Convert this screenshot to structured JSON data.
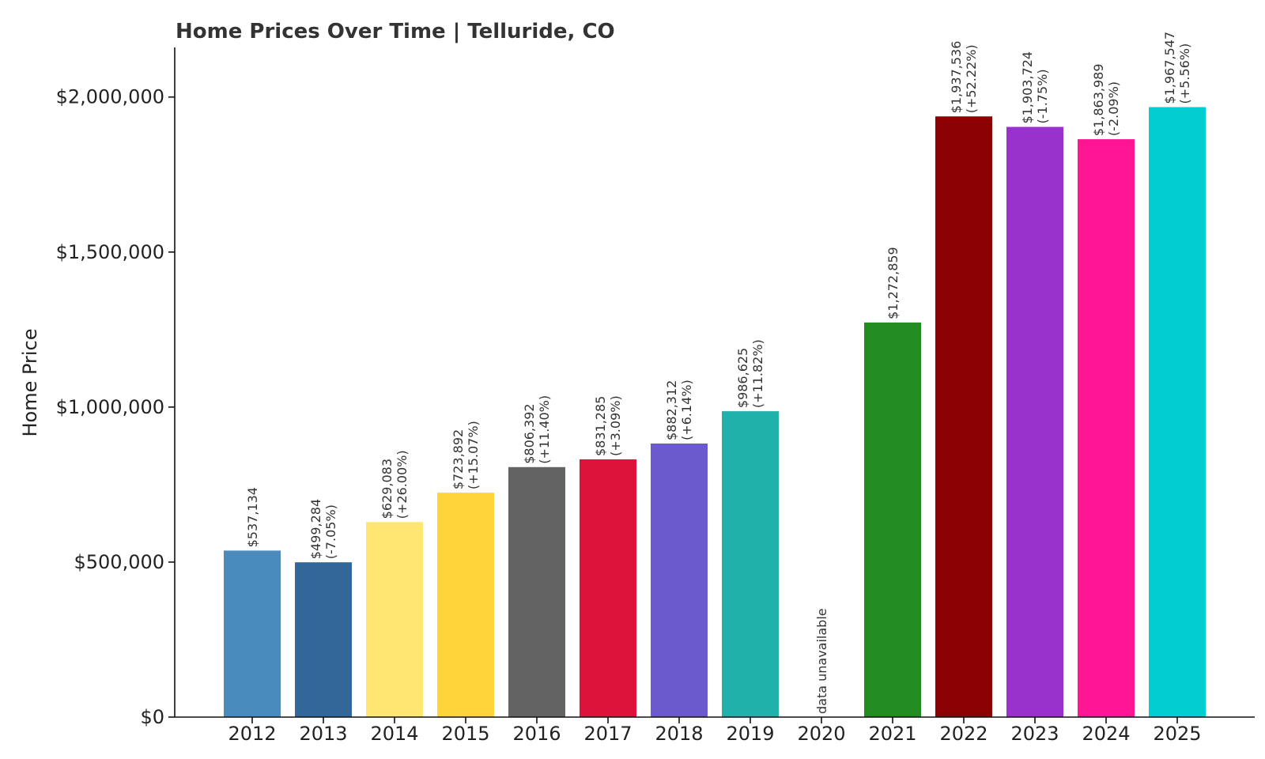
{
  "chart_data": {
    "type": "bar",
    "title": "Home Prices Over Time | Telluride, CO",
    "xlabel": "",
    "ylabel": "Home Price",
    "ylim": [
      0,
      2160000
    ],
    "yticks": [
      {
        "value": 0,
        "label": "$0"
      },
      {
        "value": 500000,
        "label": "$500,000"
      },
      {
        "value": 1000000,
        "label": "$1,000,000"
      },
      {
        "value": 1500000,
        "label": "$1,500,000"
      },
      {
        "value": 2000000,
        "label": "$2,000,000"
      }
    ],
    "grid": false,
    "categories": [
      "2012",
      "2013",
      "2014",
      "2015",
      "2016",
      "2017",
      "2018",
      "2019",
      "2020",
      "2021",
      "2022",
      "2023",
      "2024",
      "2025"
    ],
    "values": [
      537134,
      499284,
      629083,
      723892,
      806392,
      831285,
      882312,
      986625,
      null,
      1272859,
      1937536,
      1903724,
      1863989,
      1967547
    ],
    "colors": [
      "#4a8bbe",
      "#336699",
      "#ffe671",
      "#ffd43b",
      "#636363",
      "#dc143c",
      "#6a5acd",
      "#20b2aa",
      "#cccccc",
      "#228b22",
      "#8b0000",
      "#9932cc",
      "#ff1493",
      "#00ced1"
    ],
    "label_line1": [
      "$537,134",
      "$499,284",
      "$629,083",
      "$723,892",
      "$806,392",
      "$831,285",
      "$882,312",
      "$986,625",
      "data unavailable",
      "$1,272,859",
      "$1,937,536",
      "$1,903,724",
      "$1,863,989",
      "$1,967,547"
    ],
    "label_line2": [
      "",
      "(-7.05%)",
      "(+26.00%)",
      "(+15.07%)",
      "(+11.40%)",
      "(+3.09%)",
      "(+6.14%)",
      "(+11.82%)",
      "",
      "",
      "(+52.22%)",
      "(-1.75%)",
      "(-2.09%)",
      "(+5.56%)"
    ]
  }
}
